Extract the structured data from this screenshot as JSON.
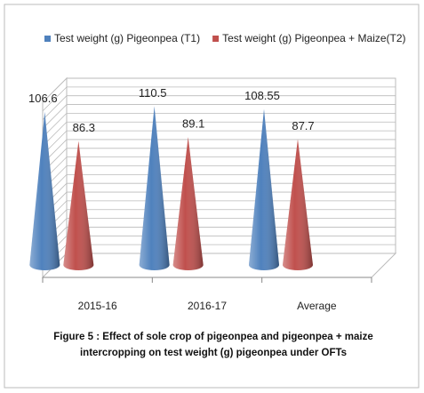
{
  "chart_data": {
    "type": "cone",
    "caption": "Figure 5 :  Effect of sole crop of pigeonpea and pigeonpea + maize intercropping on test weight (g) pigeonpea under OFTs",
    "categories": [
      "2015-16",
      "2016-17",
      "Average"
    ],
    "series": [
      {
        "name": "Test weight (g) Pigeonpea (T1)",
        "color": "#4f81bd",
        "values": [
          106.6,
          110.5,
          108.55
        ]
      },
      {
        "name": "Test weight (g) Pigeonpea + Maize(T2)",
        "color": "#c0504d",
        "values": [
          86.3,
          89.1,
          87.7
        ]
      }
    ],
    "ylim": [
      0,
      130
    ],
    "grid": true,
    "legend": "top"
  }
}
